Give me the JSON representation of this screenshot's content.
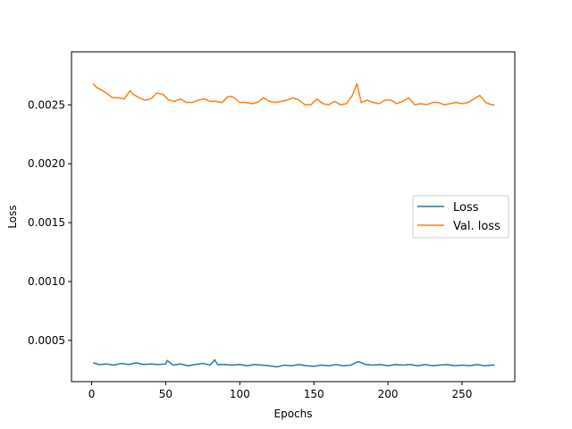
{
  "chart_data": {
    "type": "line",
    "title": "",
    "xlabel": "Epochs",
    "ylabel": "Loss",
    "xlim": [
      -13.6,
      285.6
    ],
    "ylim": [
      0.00015,
      0.00295
    ],
    "xticks": [
      0,
      50,
      100,
      150,
      200,
      250
    ],
    "xtick_labels": [
      "0",
      "50",
      "100",
      "150",
      "200",
      "250"
    ],
    "yticks": [
      0.0005,
      0.001,
      0.0015,
      0.002,
      0.0025
    ],
    "ytick_labels": [
      "0.0005",
      "0.0010",
      "0.0015",
      "0.0020",
      "0.0025"
    ],
    "grid": false,
    "legend": {
      "position": "center-right",
      "entries": [
        "Loss",
        "Val. loss"
      ]
    },
    "series": [
      {
        "name": "Loss",
        "color": "#1f77b4",
        "x": [
          1,
          5,
          10,
          15,
          20,
          25,
          30,
          35,
          40,
          45,
          50,
          51,
          55,
          60,
          65,
          70,
          75,
          80,
          83,
          85,
          90,
          95,
          100,
          105,
          110,
          115,
          120,
          125,
          130,
          135,
          140,
          145,
          150,
          155,
          160,
          165,
          170,
          175,
          180,
          185,
          190,
          195,
          200,
          205,
          210,
          215,
          220,
          225,
          230,
          235,
          240,
          245,
          250,
          255,
          260,
          265,
          270,
          272
        ],
        "y": [
          0.00031,
          0.000295,
          0.0003,
          0.00029,
          0.000305,
          0.000295,
          0.00031,
          0.000295,
          0.0003,
          0.000295,
          0.0003,
          0.00033,
          0.00029,
          0.0003,
          0.000285,
          0.000295,
          0.000305,
          0.00029,
          0.000335,
          0.000295,
          0.000295,
          0.00029,
          0.000295,
          0.000285,
          0.000295,
          0.00029,
          0.000285,
          0.000275,
          0.00029,
          0.000285,
          0.000295,
          0.000285,
          0.00028,
          0.00029,
          0.000285,
          0.000295,
          0.000285,
          0.00029,
          0.00032,
          0.000295,
          0.00029,
          0.000295,
          0.000285,
          0.000295,
          0.00029,
          0.000295,
          0.000285,
          0.000295,
          0.000285,
          0.00029,
          0.000295,
          0.000285,
          0.00029,
          0.000285,
          0.000295,
          0.000285,
          0.00029,
          0.00029
        ]
      },
      {
        "name": "Val. loss",
        "color": "#ff7f0e",
        "x": [
          1,
          3,
          6,
          10,
          14,
          18,
          22,
          26,
          28,
          32,
          36,
          40,
          44,
          48,
          52,
          56,
          60,
          64,
          68,
          72,
          76,
          80,
          84,
          88,
          92,
          95,
          100,
          104,
          108,
          112,
          116,
          120,
          124,
          128,
          132,
          136,
          140,
          144,
          148,
          152,
          156,
          160,
          164,
          168,
          172,
          176,
          179,
          182,
          186,
          190,
          194,
          198,
          202,
          206,
          210,
          214,
          218,
          222,
          226,
          230,
          234,
          238,
          242,
          246,
          250,
          254,
          258,
          262,
          266,
          270,
          272
        ],
        "y": [
          0.00268,
          0.00265,
          0.00263,
          0.0026,
          0.00256,
          0.00256,
          0.00255,
          0.00262,
          0.00259,
          0.00256,
          0.00254,
          0.00255,
          0.0026,
          0.00259,
          0.00254,
          0.00253,
          0.00255,
          0.00252,
          0.00252,
          0.00254,
          0.00255,
          0.00253,
          0.00253,
          0.00252,
          0.00257,
          0.00257,
          0.00252,
          0.00252,
          0.00251,
          0.00252,
          0.00256,
          0.00253,
          0.00252,
          0.00253,
          0.00254,
          0.00256,
          0.00254,
          0.0025,
          0.0025,
          0.00255,
          0.00251,
          0.0025,
          0.00253,
          0.0025,
          0.00251,
          0.00258,
          0.00268,
          0.00252,
          0.00254,
          0.00252,
          0.00251,
          0.00254,
          0.00254,
          0.00251,
          0.00253,
          0.00256,
          0.0025,
          0.00251,
          0.0025,
          0.00252,
          0.00252,
          0.0025,
          0.00251,
          0.00252,
          0.00251,
          0.00252,
          0.00255,
          0.00258,
          0.00252,
          0.0025,
          0.0025
        ]
      }
    ]
  }
}
